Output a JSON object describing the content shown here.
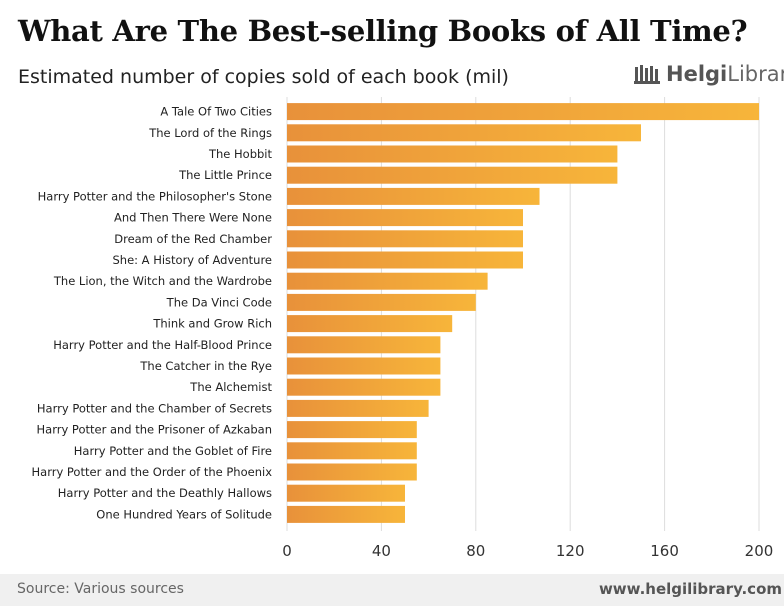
{
  "header": {
    "title": "What Are The Best-selling Books of All Time?",
    "subtitle": "Estimated number of copies sold of each book (mil)"
  },
  "logo": {
    "brand_bold": "Helgi",
    "brand_light": "Library",
    "icon": "library-bars-icon"
  },
  "footer": {
    "source": "Source: Various sources",
    "website": "www.helgilibrary.com"
  },
  "colors": {
    "bar_start": "#E8913A",
    "bar_end": "#F7B53A",
    "grid": "#dddddd"
  },
  "chart_data": {
    "type": "bar",
    "orientation": "horizontal",
    "categories": [
      "A Tale Of Two Cities",
      "The Lord of the Rings",
      "The Hobbit",
      "The Little Prince",
      "Harry Potter and the Philosopher's Stone",
      "And Then There Were None",
      "Dream of the Red Chamber",
      "She: A History of Adventure",
      "The Lion, the Witch and the Wardrobe",
      "The Da Vinci Code",
      "Think and Grow Rich",
      "Harry Potter and the Half-Blood Prince",
      "The Catcher in the Rye",
      "The Alchemist",
      "Harry Potter and the Chamber of Secrets",
      "Harry Potter and the Prisoner of Azkaban",
      "Harry Potter and the Goblet of Fire",
      "Harry Potter and the Order of the Phoenix",
      "Harry Potter and the Deathly Hallows",
      "One Hundred Years of Solitude"
    ],
    "values": [
      200,
      150,
      140,
      140,
      107,
      100,
      100,
      100,
      85,
      80,
      70,
      65,
      65,
      65,
      60,
      55,
      55,
      55,
      50,
      50
    ],
    "xlim": [
      0,
      200
    ],
    "xticks": [
      "0",
      "40",
      "80",
      "120",
      "160",
      "200"
    ],
    "xtick_values": [
      0,
      40,
      80,
      120,
      160,
      200
    ],
    "grid": true
  }
}
